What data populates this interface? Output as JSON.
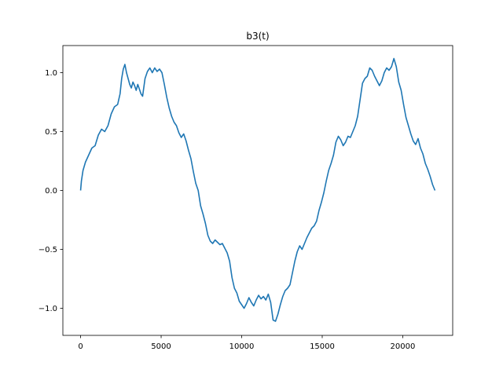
{
  "chart_data": {
    "type": "line",
    "title": "b3(t)",
    "xlabel": "",
    "ylabel": "",
    "xlim": [
      -1100,
      23100
    ],
    "ylim": [
      -1.23,
      1.23
    ],
    "xticks": [
      0,
      5000,
      10000,
      15000,
      20000
    ],
    "xtick_labels": [
      "0",
      "5000",
      "10000",
      "15000",
      "20000"
    ],
    "yticks": [
      -1.0,
      -0.5,
      0.0,
      0.5,
      1.0
    ],
    "ytick_labels": [
      "−1.0",
      "−0.5",
      "0.0",
      "0.5",
      "1.0"
    ],
    "grid": false,
    "line_color": "#1f77b4",
    "series": [
      {
        "x": [
          0,
          50,
          150,
          300,
          500,
          700,
          900,
          1100,
          1300,
          1500,
          1700,
          1900,
          2100,
          2300,
          2450,
          2550,
          2650,
          2750,
          2850,
          2950,
          3050,
          3150,
          3250,
          3350,
          3450,
          3550,
          3650,
          3750,
          3850,
          4000,
          4150,
          4300,
          4450,
          4600,
          4750,
          4900,
          5050,
          5200,
          5350,
          5500,
          5650,
          5800,
          5950,
          6100,
          6250,
          6400,
          6550,
          6700,
          6850,
          7000,
          7150,
          7300,
          7450,
          7600,
          7750,
          7900,
          8050,
          8200,
          8350,
          8500,
          8650,
          8800,
          8950,
          9100,
          9250,
          9400,
          9550,
          9700,
          9850,
          10000,
          10150,
          10300,
          10450,
          10600,
          10750,
          10900,
          11050,
          11200,
          11350,
          11500,
          11650,
          11800,
          11950,
          12100,
          12250,
          12400,
          12550,
          12700,
          12850,
          13000,
          13150,
          13300,
          13450,
          13600,
          13750,
          13900,
          14050,
          14200,
          14350,
          14500,
          14650,
          14800,
          14950,
          15100,
          15250,
          15400,
          15550,
          15700,
          15850,
          16000,
          16150,
          16300,
          16450,
          16600,
          16750,
          16900,
          17050,
          17200,
          17350,
          17500,
          17650,
          17800,
          17950,
          18100,
          18250,
          18400,
          18550,
          18700,
          18850,
          19000,
          19150,
          19300,
          19450,
          19600,
          19750,
          19900,
          20050,
          20200,
          20350,
          20500,
          20650,
          20800,
          20950,
          21100,
          21250,
          21400,
          21550,
          21700,
          21850,
          22000
        ],
        "y": [
          0.0,
          0.08,
          0.17,
          0.24,
          0.3,
          0.36,
          0.38,
          0.47,
          0.52,
          0.5,
          0.55,
          0.65,
          0.71,
          0.73,
          0.82,
          0.95,
          1.03,
          1.07,
          1.0,
          0.95,
          0.9,
          0.87,
          0.92,
          0.89,
          0.85,
          0.9,
          0.86,
          0.82,
          0.8,
          0.95,
          1.01,
          1.04,
          1.0,
          1.04,
          1.01,
          1.03,
          1.0,
          0.9,
          0.79,
          0.7,
          0.63,
          0.58,
          0.55,
          0.49,
          0.45,
          0.48,
          0.42,
          0.34,
          0.27,
          0.16,
          0.06,
          0.0,
          -0.13,
          -0.2,
          -0.28,
          -0.38,
          -0.43,
          -0.45,
          -0.42,
          -0.44,
          -0.46,
          -0.45,
          -0.49,
          -0.53,
          -0.6,
          -0.74,
          -0.83,
          -0.87,
          -0.94,
          -0.97,
          -1.0,
          -0.96,
          -0.91,
          -0.95,
          -0.98,
          -0.93,
          -0.89,
          -0.92,
          -0.9,
          -0.93,
          -0.88,
          -0.95,
          -1.1,
          -1.11,
          -1.05,
          -0.97,
          -0.9,
          -0.85,
          -0.83,
          -0.8,
          -0.7,
          -0.6,
          -0.52,
          -0.47,
          -0.5,
          -0.45,
          -0.4,
          -0.36,
          -0.32,
          -0.3,
          -0.26,
          -0.17,
          -0.1,
          -0.02,
          0.08,
          0.17,
          0.23,
          0.3,
          0.41,
          0.46,
          0.43,
          0.38,
          0.41,
          0.46,
          0.45,
          0.5,
          0.55,
          0.63,
          0.77,
          0.91,
          0.95,
          0.97,
          1.04,
          1.02,
          0.97,
          0.93,
          0.89,
          0.93,
          1.0,
          1.04,
          1.02,
          1.05,
          1.12,
          1.05,
          0.92,
          0.85,
          0.73,
          0.62,
          0.55,
          0.48,
          0.42,
          0.39,
          0.44,
          0.36,
          0.31,
          0.23,
          0.18,
          0.12,
          0.05,
          0.0
        ]
      }
    ]
  }
}
